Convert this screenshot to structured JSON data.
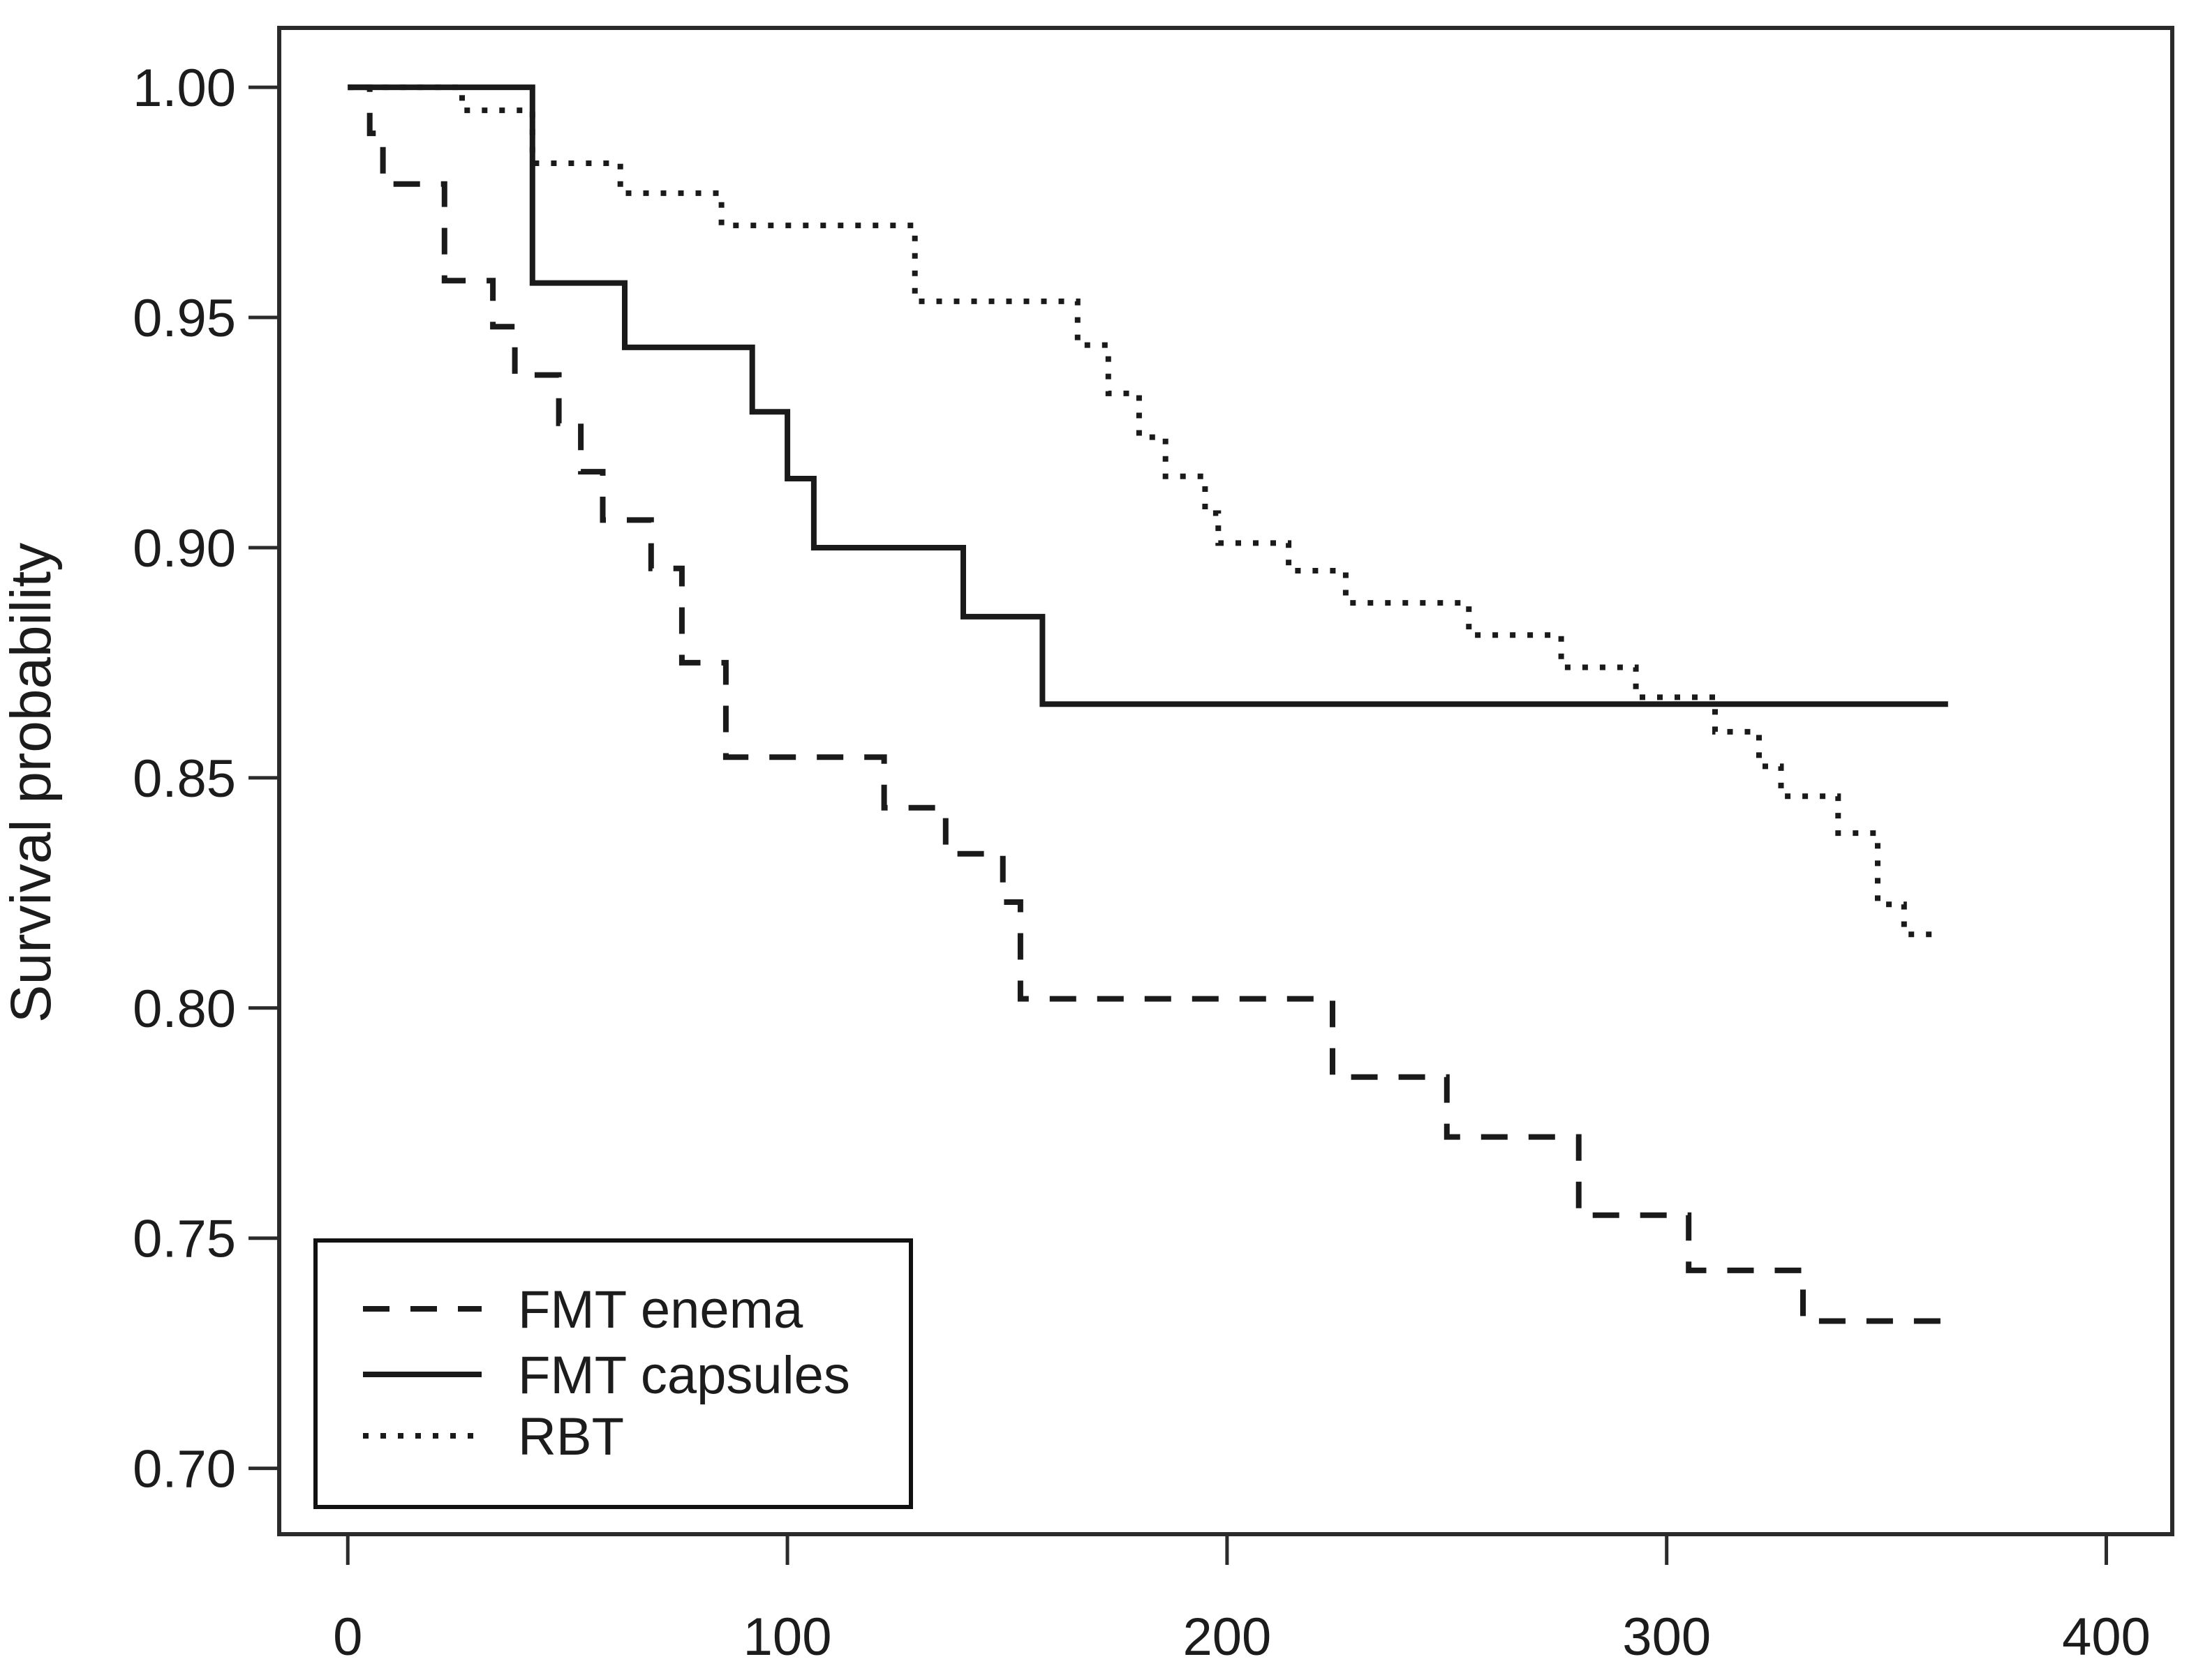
{
  "chart_data": {
    "type": "line",
    "subtype": "kaplan-meier-step",
    "title": "",
    "xlabel": "",
    "ylabel": "Survival probability",
    "grid": false,
    "background_color": "#ffffff",
    "line_color": "#1a1a1a",
    "xlim": [
      -15.6,
      415.0
    ],
    "ylim": [
      0.6857,
      1.0129
    ],
    "x_ticks": {
      "values": [
        0,
        100,
        200,
        300,
        400
      ],
      "labels": [
        "0",
        "100",
        "200",
        "300",
        "400"
      ]
    },
    "y_ticks": {
      "values": [
        1.0,
        0.95,
        0.9,
        0.85,
        0.8,
        0.75,
        0.7
      ],
      "labels": [
        "1.00",
        "0.95",
        "0.90",
        "0.85",
        "0.80",
        "0.75",
        "0.70"
      ]
    },
    "legend": {
      "position": "bottom-left",
      "items": [
        {
          "label": "FMT enema",
          "style": "dashed"
        },
        {
          "label": "FMT capsules",
          "style": "solid"
        },
        {
          "label": "RBT",
          "style": "dotted"
        }
      ]
    },
    "series": [
      {
        "name": "FMT enema",
        "style": "dashed",
        "points": [
          [
            0,
            1.0
          ],
          [
            5,
            1.0
          ],
          [
            5,
            0.99
          ],
          [
            8,
            0.99
          ],
          [
            8,
            0.979
          ],
          [
            22,
            0.979
          ],
          [
            22,
            0.958
          ],
          [
            33,
            0.958
          ],
          [
            33,
            0.948
          ],
          [
            38,
            0.948
          ],
          [
            38,
            0.9375
          ],
          [
            48,
            0.9375
          ],
          [
            48,
            0.927
          ],
          [
            53,
            0.927
          ],
          [
            53,
            0.9165
          ],
          [
            58,
            0.9165
          ],
          [
            58,
            0.906
          ],
          [
            69,
            0.906
          ],
          [
            69,
            0.8955
          ],
          [
            76,
            0.8955
          ],
          [
            76,
            0.875
          ],
          [
            86,
            0.875
          ],
          [
            86,
            0.8545
          ],
          [
            122,
            0.8545
          ],
          [
            122,
            0.8435
          ],
          [
            136,
            0.8435
          ],
          [
            136,
            0.8335
          ],
          [
            149,
            0.8335
          ],
          [
            149,
            0.823
          ],
          [
            153,
            0.823
          ],
          [
            153,
            0.802
          ],
          [
            224,
            0.802
          ],
          [
            224,
            0.785
          ],
          [
            250,
            0.785
          ],
          [
            250,
            0.772
          ],
          [
            280,
            0.772
          ],
          [
            280,
            0.755
          ],
          [
            305,
            0.755
          ],
          [
            305,
            0.743
          ],
          [
            331,
            0.743
          ],
          [
            331,
            0.732
          ],
          [
            365,
            0.732
          ]
        ]
      },
      {
        "name": "FMT capsules",
        "style": "solid",
        "points": [
          [
            0,
            1.0
          ],
          [
            42,
            1.0
          ],
          [
            42,
            0.9575
          ],
          [
            63,
            0.9575
          ],
          [
            63,
            0.9435
          ],
          [
            92,
            0.9435
          ],
          [
            92,
            0.9295
          ],
          [
            100,
            0.9295
          ],
          [
            100,
            0.915
          ],
          [
            106,
            0.915
          ],
          [
            106,
            0.9
          ],
          [
            140,
            0.9
          ],
          [
            140,
            0.885
          ],
          [
            158,
            0.885
          ],
          [
            158,
            0.866
          ],
          [
            364,
            0.866
          ]
        ]
      },
      {
        "name": "RBT",
        "style": "dotted",
        "points": [
          [
            0,
            1.0
          ],
          [
            26,
            1.0
          ],
          [
            26,
            0.995
          ],
          [
            42,
            0.995
          ],
          [
            42,
            0.9835
          ],
          [
            62,
            0.9835
          ],
          [
            62,
            0.977
          ],
          [
            85,
            0.977
          ],
          [
            85,
            0.97
          ],
          [
            129,
            0.97
          ],
          [
            129,
            0.9535
          ],
          [
            166,
            0.9535
          ],
          [
            166,
            0.944
          ],
          [
            173,
            0.944
          ],
          [
            173,
            0.9335
          ],
          [
            180,
            0.9335
          ],
          [
            180,
            0.924
          ],
          [
            186,
            0.924
          ],
          [
            186,
            0.9155
          ],
          [
            195,
            0.9155
          ],
          [
            195,
            0.9075
          ],
          [
            198,
            0.9075
          ],
          [
            198,
            0.901
          ],
          [
            214,
            0.901
          ],
          [
            214,
            0.895
          ],
          [
            227,
            0.895
          ],
          [
            227,
            0.888
          ],
          [
            255,
            0.888
          ],
          [
            255,
            0.881
          ],
          [
            276,
            0.881
          ],
          [
            276,
            0.874
          ],
          [
            293,
            0.874
          ],
          [
            293,
            0.8675
          ],
          [
            311,
            0.8675
          ],
          [
            311,
            0.86
          ],
          [
            321,
            0.86
          ],
          [
            321,
            0.8525
          ],
          [
            326,
            0.8525
          ],
          [
            326,
            0.846
          ],
          [
            339,
            0.846
          ],
          [
            339,
            0.838
          ],
          [
            348,
            0.838
          ],
          [
            348,
            0.8225
          ],
          [
            354,
            0.8225
          ],
          [
            354,
            0.816
          ],
          [
            362,
            0.816
          ]
        ]
      }
    ]
  }
}
